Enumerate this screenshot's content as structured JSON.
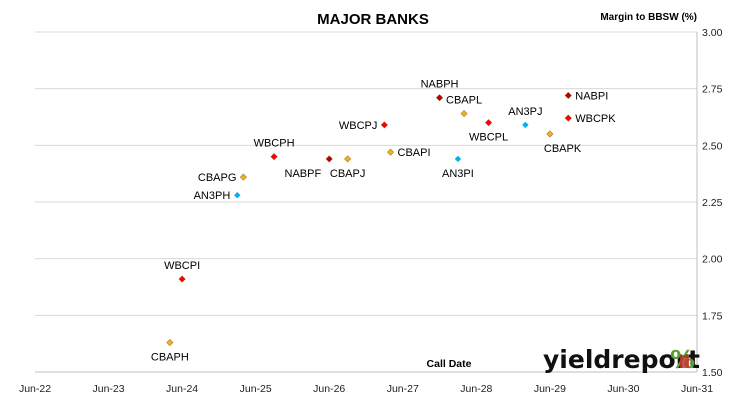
{
  "chart_data": {
    "type": "scatter",
    "title": "MAJOR BANKS",
    "xlabel": "Call Date",
    "ylabel": "Margin to BBSW (%)",
    "x_ticks": [
      "Jun-22",
      "Jun-23",
      "Jun-24",
      "Jun-25",
      "Jun-26",
      "Jun-27",
      "Jun-28",
      "Jun-29",
      "Jun-30",
      "Jun-31"
    ],
    "xlim": [
      "2022-06",
      "2031-06"
    ],
    "y_ticks": [
      "1.50",
      "1.75",
      "2.00",
      "2.25",
      "2.50",
      "2.75",
      "3.00"
    ],
    "ylim": [
      1.5,
      3.0
    ],
    "grid": "horizontal",
    "y_axis_position": "right",
    "points": [
      {
        "label": "CBAPH",
        "x": "2024-04",
        "y": 1.63,
        "color": "#f0b020",
        "label_pos": "below"
      },
      {
        "label": "WBCPI",
        "x": "2024-06",
        "y": 1.91,
        "color": "#ff0000",
        "label_pos": "above"
      },
      {
        "label": "AN3PH",
        "x": "2025-03",
        "y": 2.28,
        "color": "#00b0f0",
        "label_pos": "left"
      },
      {
        "label": "CBAPG",
        "x": "2025-04",
        "y": 2.36,
        "color": "#f0b020",
        "label_pos": "left"
      },
      {
        "label": "WBCPH",
        "x": "2025-09",
        "y": 2.45,
        "color": "#ff0000",
        "label_pos": "above"
      },
      {
        "label": "NABPF",
        "x": "2026-06",
        "y": 2.44,
        "color": "#c00000",
        "label_pos": "below-left"
      },
      {
        "label": "CBAPJ",
        "x": "2026-09",
        "y": 2.44,
        "color": "#f0b020",
        "label_pos": "below"
      },
      {
        "label": "WBCPJ",
        "x": "2027-03",
        "y": 2.59,
        "color": "#ff0000",
        "label_pos": "left"
      },
      {
        "label": "CBAPI",
        "x": "2027-04",
        "y": 2.47,
        "color": "#f0b020",
        "label_pos": "right"
      },
      {
        "label": "NABPH",
        "x": "2027-12",
        "y": 2.71,
        "color": "#c00000",
        "label_pos": "above"
      },
      {
        "label": "AN3PI",
        "x": "2028-03",
        "y": 2.44,
        "color": "#00b0f0",
        "label_pos": "below"
      },
      {
        "label": "CBAPL",
        "x": "2028-04",
        "y": 2.64,
        "color": "#f0b020",
        "label_pos": "above"
      },
      {
        "label": "WBCPL",
        "x": "2028-08",
        "y": 2.6,
        "color": "#ff0000",
        "label_pos": "below"
      },
      {
        "label": "AN3PJ",
        "x": "2029-02",
        "y": 2.59,
        "color": "#00b0f0",
        "label_pos": "above"
      },
      {
        "label": "CBAPK",
        "x": "2029-06",
        "y": 2.55,
        "color": "#f0b020",
        "label_pos": "below-right"
      },
      {
        "label": "NABPI",
        "x": "2029-09",
        "y": 2.72,
        "color": "#c00000",
        "label_pos": "right"
      },
      {
        "label": "WBCPK",
        "x": "2029-09",
        "y": 2.62,
        "color": "#ff0000",
        "label_pos": "right"
      }
    ]
  },
  "logo": {
    "text": "yieldreport",
    "symbol": "%",
    "text_color": "#111111",
    "symbol_color_top": "#5aa02c",
    "symbol_color_bottom": "#c0392b"
  }
}
